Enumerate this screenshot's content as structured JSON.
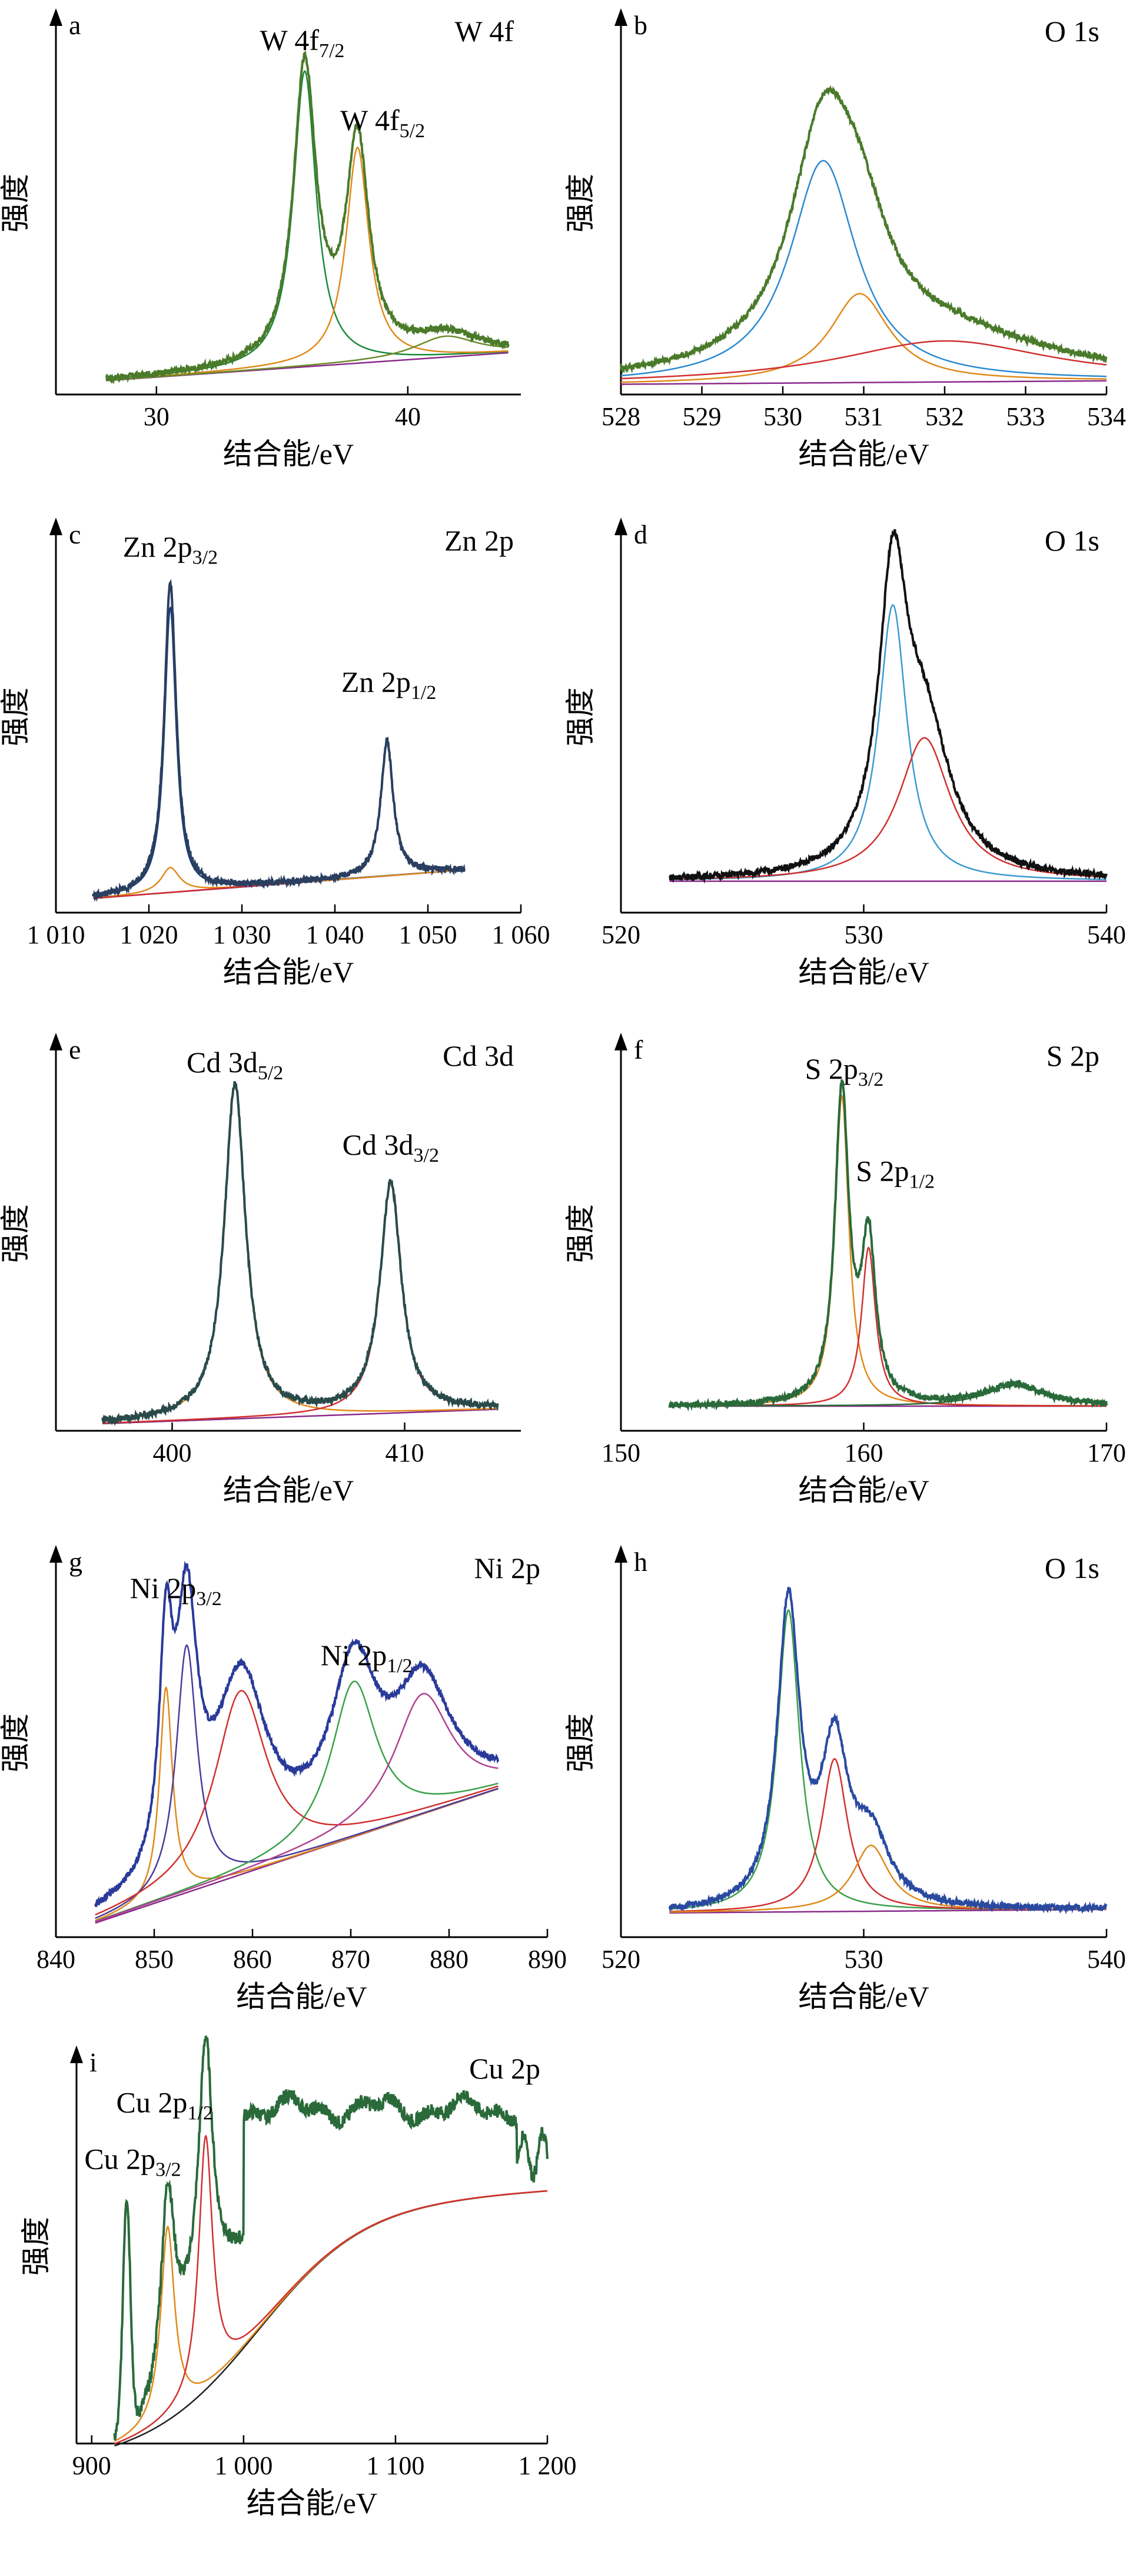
{
  "figure": {
    "ylabel": "强度",
    "xlabel": "结合能/eV"
  },
  "chart_data": [
    {
      "type": "line",
      "panel": "a",
      "title": "W 4f",
      "xlabel": "结合能/eV",
      "ylabel": "强度",
      "xlim": [
        26,
        44.5
      ],
      "ylim": [
        0,
        1.1
      ],
      "xticks": [
        30,
        40
      ],
      "xtick_labels": [
        "30",
        "40"
      ],
      "annotations": [
        {
          "main": "W 4f",
          "sub": "7/2",
          "x": 35.8,
          "y": 0.99
        },
        {
          "main": "W 4f",
          "sub": "5/2",
          "x": 39.0,
          "y": 0.76
        }
      ],
      "baseline": {
        "x": [
          28,
          44
        ],
        "y": [
          0.04,
          0.12
        ]
      },
      "components": [
        {
          "color": "#1a8a3a",
          "x0": 35.9,
          "w": 0.55,
          "h": 0.85
        },
        {
          "color": "#e08a1a",
          "x0": 38.0,
          "w": 0.55,
          "h": 0.62
        },
        {
          "color": "#6b8a2a",
          "x0": 41.5,
          "w": 1.5,
          "h": 0.06
        }
      ],
      "envelope": {
        "color": "#4a7a2a",
        "x": [
          28,
          44
        ]
      }
    },
    {
      "type": "line",
      "panel": "b",
      "title": "O 1s",
      "xlabel": "结合能/eV",
      "ylabel": "强度",
      "xlim": [
        528,
        534
      ],
      "ylim": [
        0,
        1.12
      ],
      "xticks": [
        528,
        529,
        530,
        531,
        532,
        533,
        534
      ],
      "xtick_labels": [
        "528",
        "529",
        "530",
        "531",
        "532",
        "533",
        "534"
      ],
      "annotations": [],
      "baseline": {
        "x": [
          528,
          534
        ],
        "y": [
          0.03,
          0.04
        ]
      },
      "components": [
        {
          "color": "#2a8ad0",
          "x0": 530.5,
          "w": 0.5,
          "h": 0.65
        },
        {
          "color": "#e08a1a",
          "x0": 530.95,
          "w": 0.45,
          "h": 0.26
        },
        {
          "color": "#d03030",
          "x0": 532.0,
          "w": 1.6,
          "h": 0.12
        }
      ],
      "envelope": {
        "color": "#4a7a2a",
        "x": [
          528,
          534
        ]
      }
    },
    {
      "type": "line",
      "panel": "c",
      "title": "Zn 2p",
      "xlabel": "结合能/eV",
      "ylabel": "强度",
      "xlim": [
        1010,
        1060
      ],
      "ylim": [
        0,
        1.1
      ],
      "xticks": [
        1010,
        1020,
        1030,
        1040,
        1050,
        1060
      ],
      "xtick_labels": [
        "1 010",
        "1 020",
        "1 030",
        "1 040",
        "1 050",
        "1 060"
      ],
      "annotations": [
        {
          "main": "Zn 2p",
          "sub": "3/2",
          "x": 1022.3,
          "y": 1.0
        },
        {
          "main": "Zn 2p",
          "sub": "1/2",
          "x": 1045.8,
          "y": 0.62
        }
      ],
      "baseline": {
        "x": [
          1014,
          1054
        ],
        "y": [
          0.04,
          0.12
        ]
      },
      "components": [
        {
          "color": "#1a3a7a",
          "x0": 1022.3,
          "w": 0.75,
          "h": 0.8
        },
        {
          "color": "#e08a1a",
          "x0": 1022.3,
          "w": 1.2,
          "h": 0.07
        },
        {
          "color": "#d03030",
          "x0": 1045.6,
          "w": 0.8,
          "h": 0.38
        }
      ],
      "envelope": {
        "color": "#2a3f5f",
        "x": [
          1014,
          1054
        ]
      }
    },
    {
      "type": "line",
      "panel": "d",
      "title": "O 1s",
      "xlabel": "结合能/eV",
      "ylabel": "强度",
      "xlim": [
        520,
        540
      ],
      "ylim": [
        0,
        1.12
      ],
      "xticks": [
        520,
        530,
        540
      ],
      "xtick_labels": [
        "520",
        "530",
        "540"
      ],
      "annotations": [],
      "baseline": {
        "x": [
          522,
          540
        ],
        "y": [
          0.09,
          0.09
        ]
      },
      "components": [
        {
          "color": "#3a9ad0",
          "x0": 531.2,
          "w": 0.7,
          "h": 0.79
        },
        {
          "color": "#d03030",
          "x0": 532.5,
          "w": 1.3,
          "h": 0.41
        }
      ],
      "envelope": {
        "color": "#111111",
        "x": [
          522,
          540
        ]
      }
    },
    {
      "type": "line",
      "panel": "e",
      "title": "Cd 3d",
      "xlabel": "结合能/eV",
      "ylabel": "强度",
      "xlim": [
        395,
        415
      ],
      "ylim": [
        0,
        1.1
      ],
      "xticks": [
        400,
        410
      ],
      "xtick_labels": [
        "400",
        "410"
      ],
      "annotations": [
        {
          "main": "Cd 3d",
          "sub": "5/2",
          "x": 402.7,
          "y": 1.0
        },
        {
          "main": "Cd 3d",
          "sub": "3/2",
          "x": 409.4,
          "y": 0.77
        }
      ],
      "baseline": {
        "x": [
          397,
          414
        ],
        "y": [
          0.02,
          0.06
        ]
      },
      "components": [
        {
          "color": "#e08a1a",
          "x0": 402.7,
          "w": 0.55,
          "h": 0.93
        },
        {
          "color": "#d03030",
          "x0": 409.4,
          "w": 0.55,
          "h": 0.64
        }
      ],
      "envelope": {
        "color": "#2a4a4a",
        "x": [
          397,
          414
        ]
      }
    },
    {
      "type": "line",
      "panel": "f",
      "title": "S 2p",
      "xlabel": "结合能/eV",
      "ylabel": "强度",
      "xlim": [
        150,
        170
      ],
      "ylim": [
        0,
        1.12
      ],
      "xticks": [
        150,
        160,
        170
      ],
      "xtick_labels": [
        "150",
        "160",
        "170"
      ],
      "annotations": [
        {
          "main": "S 2p",
          "sub": "3/2",
          "x": 159.2,
          "y": 1.0
        },
        {
          "main": "S 2p",
          "sub": "1/2",
          "x": 161.3,
          "y": 0.71
        }
      ],
      "baseline": {
        "x": [
          152,
          170
        ],
        "y": [
          0.07,
          0.07
        ]
      },
      "components": [
        {
          "color": "#e08a1a",
          "x0": 159.1,
          "w": 0.35,
          "h": 0.88
        },
        {
          "color": "#d03030",
          "x0": 160.2,
          "w": 0.35,
          "h": 0.45
        },
        {
          "color": "#2a6a3a",
          "x0": 166.2,
          "w": 1.4,
          "h": 0.06
        }
      ],
      "envelope": {
        "color": "#2a6a3a",
        "x": [
          152,
          170
        ]
      }
    },
    {
      "type": "line",
      "panel": "g",
      "title": "Ni 2p",
      "xlabel": "结合能/eV",
      "ylabel": "强度",
      "xlim": [
        840,
        890
      ],
      "ylim": [
        0,
        1.1
      ],
      "xticks": [
        840,
        850,
        860,
        870,
        880,
        890
      ],
      "xtick_labels": [
        "840",
        "850",
        "860",
        "870",
        "880",
        "890"
      ],
      "annotations": [
        {
          "main": "Ni 2p",
          "sub": "3/2",
          "x": 852.2,
          "y": 0.96
        },
        {
          "main": "Ni 2p",
          "sub": "1/2",
          "x": 871.6,
          "y": 0.77
        }
      ],
      "baseline": {
        "x": [
          844,
          885
        ],
        "y": [
          0.04,
          0.42
        ]
      },
      "components": [
        {
          "color": "#e08a1a",
          "x0": 851.2,
          "w": 0.8,
          "h": 0.6
        },
        {
          "color": "#4a3a9a",
          "x0": 853.3,
          "w": 1.3,
          "h": 0.7
        },
        {
          "color": "#d03030",
          "x0": 858.8,
          "w": 3.2,
          "h": 0.52
        },
        {
          "color": "#3aa04a",
          "x0": 870.3,
          "w": 2.8,
          "h": 0.44
        },
        {
          "color": "#b04090",
          "x0": 877.3,
          "w": 3.5,
          "h": 0.34
        }
      ],
      "envelope": {
        "color": "#2a3a9a",
        "x": [
          844,
          885
        ]
      }
    },
    {
      "type": "line",
      "panel": "h",
      "title": "O 1s",
      "xlabel": "结合能/eV",
      "ylabel": "强度",
      "xlim": [
        520,
        540
      ],
      "ylim": [
        0,
        1.12
      ],
      "xticks": [
        520,
        530,
        540
      ],
      "xtick_labels": [
        "520",
        "530",
        "540"
      ],
      "annotations": [],
      "baseline": {
        "x": [
          522,
          540
        ],
        "y": [
          0.07,
          0.08
        ]
      },
      "components": [
        {
          "color": "#3aa04a",
          "x0": 526.9,
          "w": 0.55,
          "h": 0.87
        },
        {
          "color": "#d03030",
          "x0": 528.8,
          "w": 0.65,
          "h": 0.44
        },
        {
          "color": "#e08a1a",
          "x0": 530.3,
          "w": 0.9,
          "h": 0.19
        }
      ],
      "envelope": {
        "color": "#2a4aa0",
        "x": [
          522,
          540
        ]
      }
    },
    {
      "type": "line",
      "panel": "i",
      "title": "Cu 2p",
      "xlabel": "结合能/eV",
      "ylabel": "强度",
      "xlim": [
        890,
        1200
      ],
      "ylim": [
        0,
        1.12
      ],
      "xticks": [
        900,
        1000,
        1100,
        1200
      ],
      "xtick_labels": [
        "900",
        "1 000",
        "1 100",
        "1 200"
      ],
      "annotations": [
        {
          "main": "Cu 2p",
          "sub": "1/2",
          "x": 948,
          "y": 0.94
        },
        {
          "main": "Cu 2p",
          "sub": "3/2",
          "x": 927,
          "y": 0.78
        }
      ],
      "baseline": {
        "x": [
          915,
          1200
        ],
        "y": [
          0.0,
          0.0
        ]
      },
      "components": [
        {
          "color": "#e08a1a",
          "x0": 950,
          "w": 5.5,
          "h": 0.55
        },
        {
          "color": "#d03030",
          "x0": 975,
          "w": 5.5,
          "h": 0.72
        }
      ],
      "envelope": {
        "color": "#2a6a3a",
        "x": [
          915,
          1200
        ]
      }
    }
  ]
}
